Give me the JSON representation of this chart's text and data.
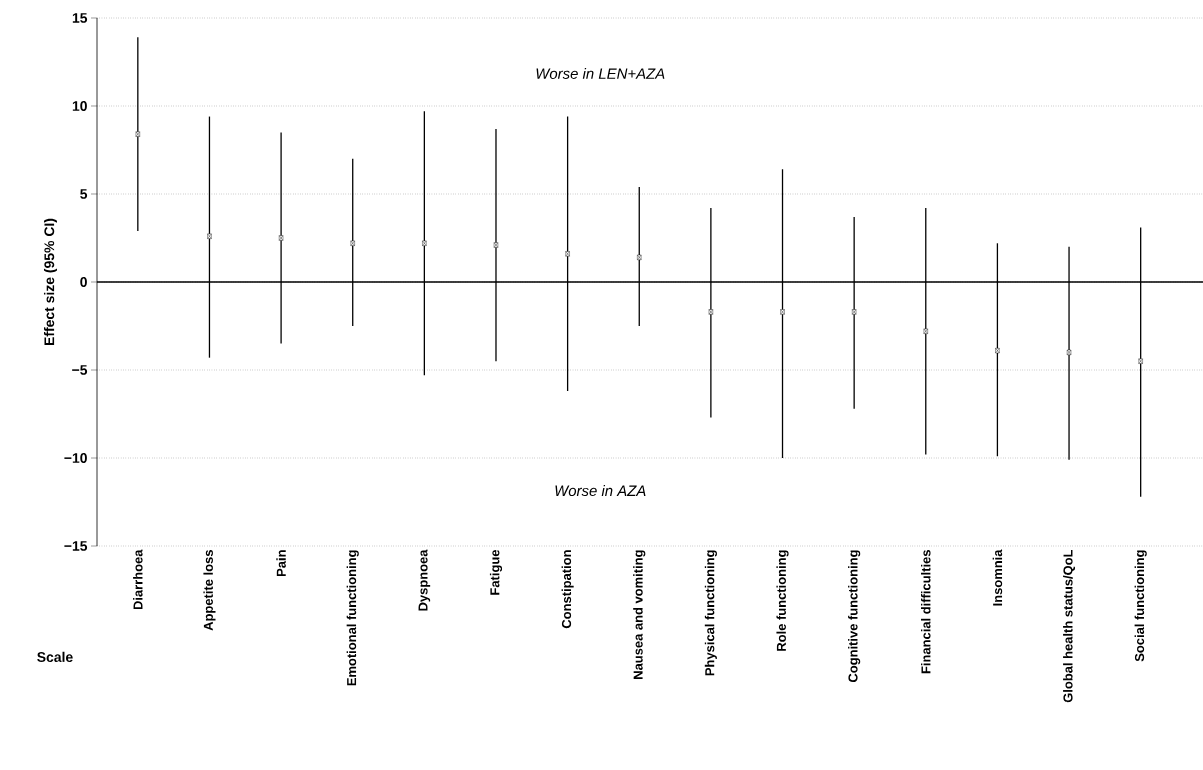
{
  "chart_data": {
    "type": "scatter",
    "ylabel": "Effect size (95% CI)",
    "xlabel": "Scale",
    "categories": [
      "Diarrhoea",
      "Appetite loss",
      "Pain",
      "Emotional functioning",
      "Dyspnoea",
      "Fatigue",
      "Constipation",
      "Nausea and vomiting",
      "Physical functioning",
      "Role functioning",
      "Cognitive functioning",
      "Financial difficulties",
      "Insomnia",
      "Global health status/QoL",
      "Social functioning"
    ],
    "values": [
      8.4,
      2.6,
      2.5,
      2.2,
      2.2,
      2.1,
      1.6,
      1.4,
      -1.7,
      -1.7,
      -1.7,
      -2.8,
      -3.9,
      -4.0,
      -4.5
    ],
    "errors": [
      [
        2.9,
        13.9
      ],
      [
        -4.3,
        9.4
      ],
      [
        -3.5,
        8.5
      ],
      [
        -2.5,
        7.0
      ],
      [
        -5.3,
        9.7
      ],
      [
        -4.5,
        8.7
      ],
      [
        -6.2,
        9.4
      ],
      [
        -2.5,
        5.4
      ],
      [
        -7.7,
        4.2
      ],
      [
        -10.0,
        6.4
      ],
      [
        -7.2,
        3.7
      ],
      [
        -9.8,
        4.2
      ],
      [
        -9.9,
        2.2
      ],
      [
        -10.1,
        2.0
      ],
      [
        -12.2,
        3.1
      ]
    ],
    "color": "#000000",
    "marker": "square",
    "ylim": [
      -15,
      15
    ],
    "yticks": [
      {
        "value": -15,
        "label": "−15"
      },
      {
        "value": -10,
        "label": "−10"
      },
      {
        "value": -5,
        "label": "−5"
      },
      0,
      5,
      10,
      15
    ],
    "grid": "y",
    "ref_lines": [
      {
        "axis": "y",
        "value": 0
      }
    ],
    "annotations": [
      "Worse in LEN+AZA",
      "Worse in AZA"
    ]
  }
}
